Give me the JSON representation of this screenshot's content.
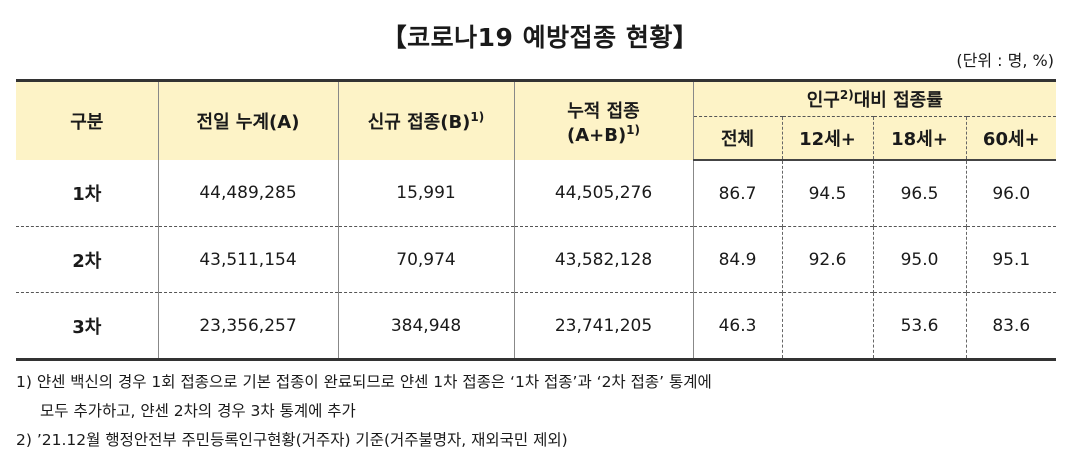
{
  "title": "【코로나19 예방접종 현황】",
  "unit": "(단위 : 명, %)",
  "headers": {
    "category": "구분",
    "prev_total": "전일 누계(A)",
    "new": "신규 접종(B)",
    "new_sup": "1)",
    "cum_line1": "누적 접종",
    "cum_line2": "(A+B)",
    "cum_sup": "1)",
    "rate_prefix": "인구",
    "rate_sup": "2)",
    "rate_suffix": "대비 접종률",
    "sub": [
      "전체",
      "12세+",
      "18세+",
      "60세+"
    ]
  },
  "rows": [
    {
      "label": "1차",
      "prev": "44,489,285",
      "new": "15,991",
      "cum": "44,505,276",
      "all": "86.7",
      "age12": "94.5",
      "age18": "96.5",
      "age60": "96.0"
    },
    {
      "label": "2차",
      "prev": "43,511,154",
      "new": "70,974",
      "cum": "43,582,128",
      "all": "84.9",
      "age12": "92.6",
      "age18": "95.0",
      "age60": "95.1"
    },
    {
      "label": "3차",
      "prev": "23,356,257",
      "new": "384,948",
      "cum": "23,741,205",
      "all": "46.3",
      "age12": "",
      "age18": "53.6",
      "age60": "83.6"
    }
  ],
  "footnotes": [
    "1) 얀센 백신의 경우 1회 접종으로 기본 접종이 완료되므로 얀센 1차 접종은 ‘1차 접종’과 ‘2차 접종’ 통계에",
    "모두 추가하고, 얀센 2차의 경우 3차 통계에 추가",
    "2) ’21.12월 행정안전부 주민등록인구현황(거주자) 기준(거주불명자, 재외국민 제외)"
  ]
}
